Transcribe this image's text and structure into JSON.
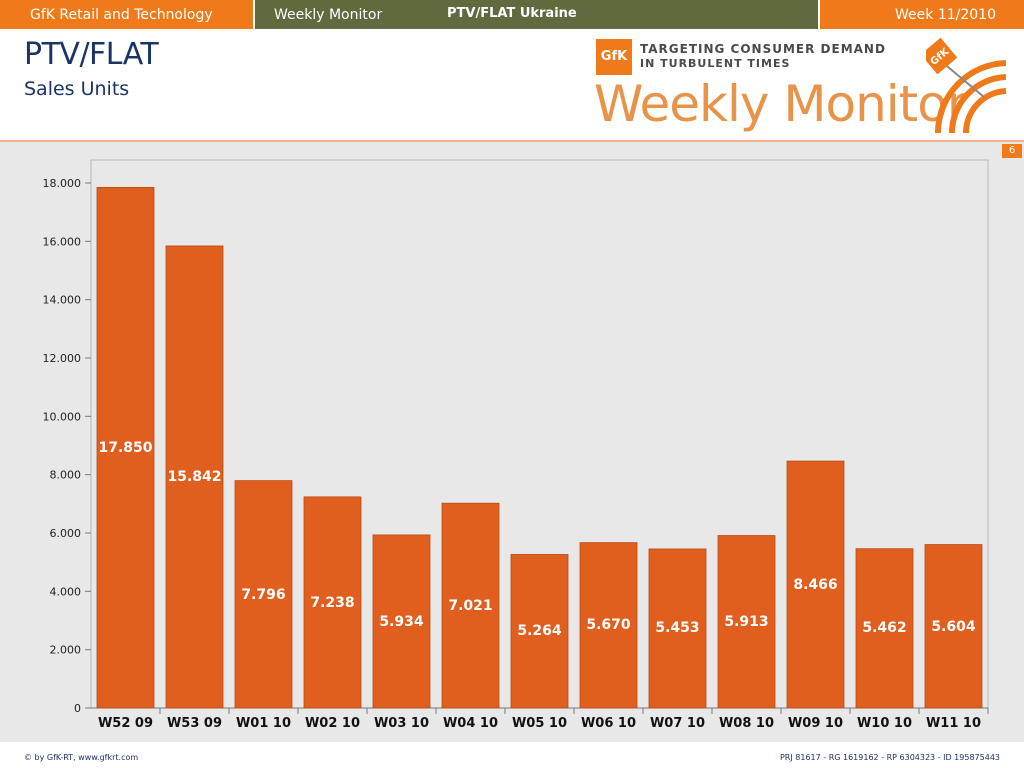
{
  "topbar": {
    "org": "GfK Retail and Technology",
    "product": "Weekly Monitor",
    "report": "PTV/FLAT Ukraine",
    "week": "Week 11/2010",
    "colors": {
      "orange": "#f07a1a",
      "olive": "#5f6a3f"
    }
  },
  "header": {
    "title": "PTV/FLAT",
    "subtitle": "Sales Units",
    "logo": {
      "badge": "GfK",
      "tagline_1": "TARGETING CONSUMER DEMAND",
      "tagline_2": "IN TURBULENT TIMES",
      "brand": "Weekly Monitor",
      "emblem_text": "GfK"
    }
  },
  "page_number": "6",
  "chart_data": {
    "type": "bar",
    "categories": [
      "W52 09",
      "W53 09",
      "W01 10",
      "W02 10",
      "W03 10",
      "W04 10",
      "W05 10",
      "W06 10",
      "W07 10",
      "W08 10",
      "W09 10",
      "W10 10",
      "W11 10"
    ],
    "values": [
      17850,
      15842,
      7796,
      7238,
      5934,
      7021,
      5264,
      5670,
      5453,
      5913,
      8466,
      5462,
      5604
    ],
    "value_labels": [
      "17.850",
      "15.842",
      "7.796",
      "7.238",
      "5.934",
      "7.021",
      "5.264",
      "5.670",
      "5.453",
      "5.913",
      "8.466",
      "5.462",
      "5.604"
    ],
    "yticks": [
      0,
      2000,
      4000,
      6000,
      8000,
      10000,
      12000,
      14000,
      16000,
      18000
    ],
    "ytick_labels": [
      "0",
      "2.000",
      "4.000",
      "6.000",
      "8.000",
      "10.000",
      "12.000",
      "14.000",
      "16.000",
      "18.000"
    ],
    "ylim": [
      0,
      18000
    ],
    "grid": false,
    "bar_color": "#e05f1f",
    "title": "",
    "xlabel": "",
    "ylabel": ""
  },
  "footer": {
    "left": "© by GfK-RT, www.gfkrt.com",
    "right": "PRJ 81617 - RG 1619162 - RP 6304323 - ID 195875443"
  }
}
